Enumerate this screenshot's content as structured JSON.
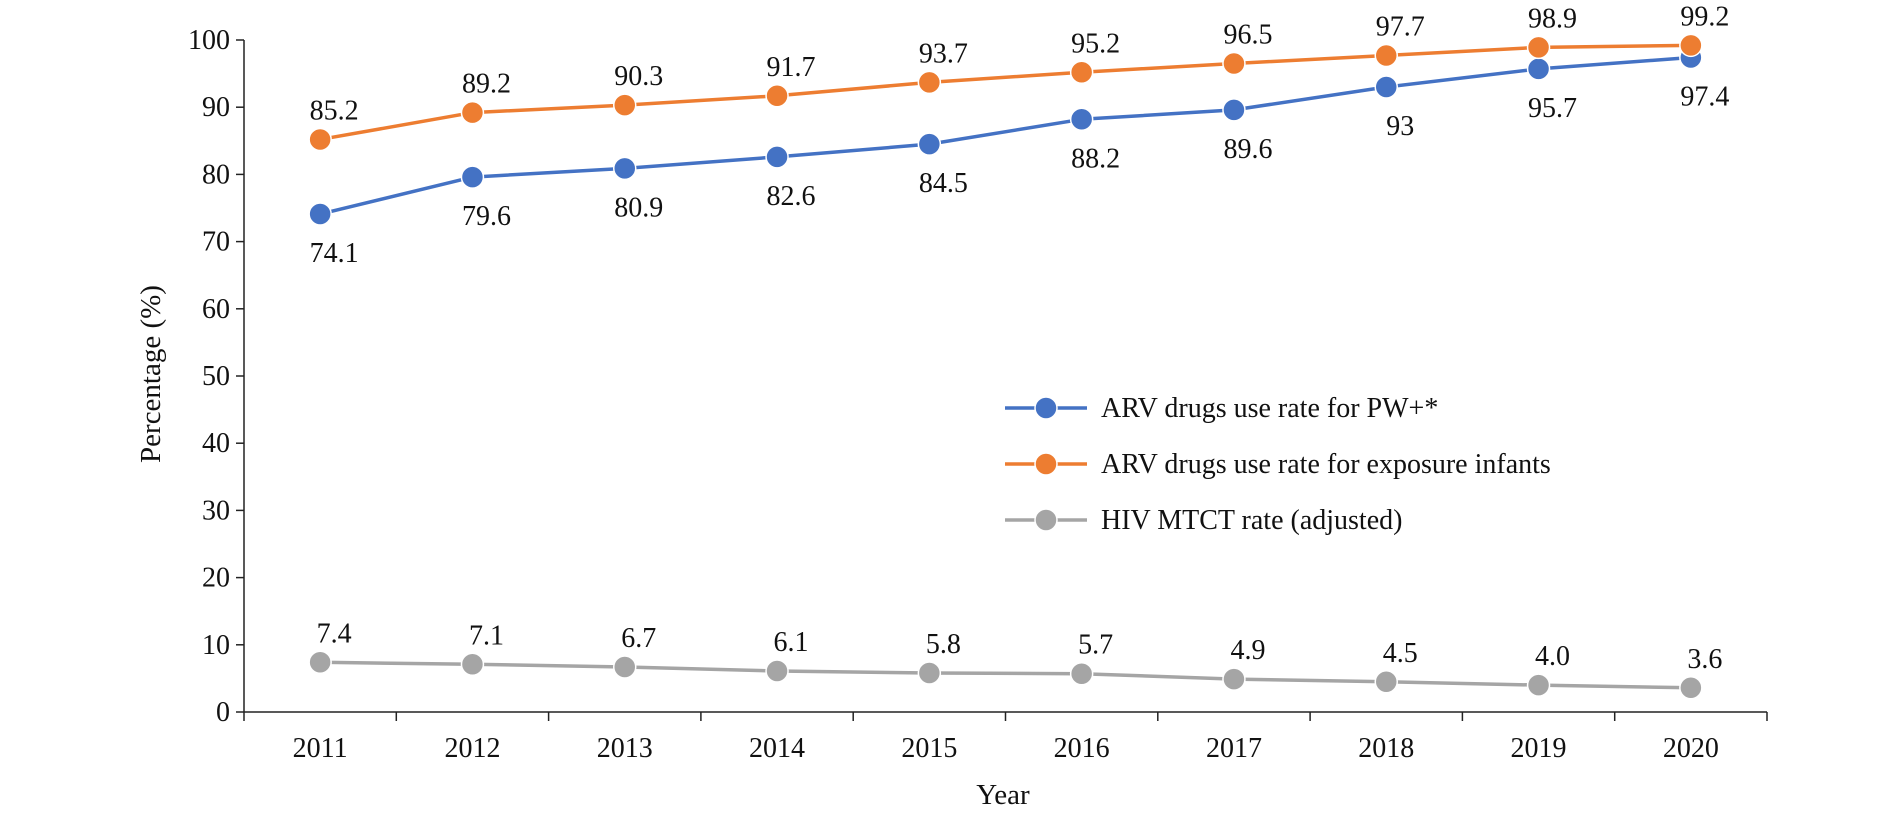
{
  "chart_data": {
    "type": "line",
    "title": "",
    "xlabel": "Year",
    "ylabel": "Percentage (%)",
    "ylim": [
      0,
      100
    ],
    "yticks": [
      "0",
      "10",
      "20",
      "30",
      "40",
      "50",
      "60",
      "70",
      "80",
      "90",
      "100"
    ],
    "categories": [
      "2011",
      "2012",
      "2013",
      "2014",
      "2015",
      "2016",
      "2017",
      "2018",
      "2019",
      "2020"
    ],
    "grid": false,
    "legend_position": "center-right",
    "series": [
      {
        "name": "ARV drugs use rate for PW+*",
        "color": "#4472C4",
        "label_position": "below",
        "values": [
          74.1,
          79.6,
          80.9,
          82.6,
          84.5,
          88.2,
          89.6,
          93,
          95.7,
          97.4
        ],
        "labels": [
          "74.1",
          "79.6",
          "80.9",
          "82.6",
          "84.5",
          "88.2",
          "89.6",
          "93",
          "95.7",
          "97.4"
        ]
      },
      {
        "name": "ARV drugs use rate for exposure infants",
        "color": "#ED7D31",
        "label_position": "above",
        "values": [
          85.2,
          89.2,
          90.3,
          91.7,
          93.7,
          95.2,
          96.5,
          97.7,
          98.9,
          99.2
        ],
        "labels": [
          "85.2",
          "89.2",
          "90.3",
          "91.7",
          "93.7",
          "95.2",
          "96.5",
          "97.7",
          "98.9",
          "99.2"
        ]
      },
      {
        "name": "HIV MTCT rate (adjusted)",
        "color": "#A5A5A5",
        "label_position": "above",
        "values": [
          7.4,
          7.1,
          6.7,
          6.1,
          5.8,
          5.7,
          4.9,
          4.5,
          4.0,
          3.6
        ],
        "labels": [
          "7.4",
          "7.1",
          "6.7",
          "6.1",
          "5.8",
          "5.7",
          "4.9",
          "4.5",
          "4.0",
          "3.6"
        ]
      }
    ]
  }
}
